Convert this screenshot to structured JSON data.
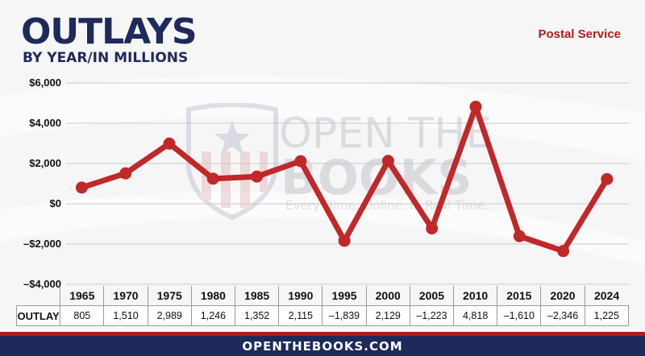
{
  "header": {
    "title": "OUTLAYS",
    "subtitle": "BY YEAR/IN MILLIONS",
    "series_label": "Postal Service"
  },
  "watermark": {
    "line1": "OPEN THE",
    "line2": "BOOKS",
    "tagline": "Every Dime. Online. In Real Time."
  },
  "table": {
    "row_label": "OUTLAY",
    "values": [
      "805",
      "1,510",
      "2,989",
      "1,246",
      "1,352",
      "2,115",
      "–1,839",
      "2,129",
      "–1,223",
      "4,818",
      "–1,610",
      "–2,346",
      "1,225"
    ]
  },
  "footer": {
    "text": "OPENTHEBOOKS.COM"
  },
  "colors": {
    "line": "#c0282a",
    "title": "#1e2a5a",
    "accent": "#b31b1b"
  },
  "chart_data": {
    "type": "line",
    "title": "OUTLAYS",
    "subtitle": "BY YEAR/IN MILLIONS",
    "categories": [
      "1965",
      "1970",
      "1975",
      "1980",
      "1985",
      "1990",
      "1995",
      "2000",
      "2005",
      "2010",
      "2015",
      "2020",
      "2024"
    ],
    "series": [
      {
        "name": "Postal Service",
        "values": [
          805,
          1510,
          2989,
          1246,
          1352,
          2115,
          -1839,
          2129,
          -1223,
          4818,
          -1610,
          -2346,
          1225
        ]
      }
    ],
    "ylim": [
      -4000,
      6000
    ],
    "yticks": [
      -4000,
      -2000,
      0,
      2000,
      4000,
      6000
    ],
    "ytick_labels": [
      "–$4,000",
      "–$2,000",
      "$0",
      "$2,000",
      "$4,000",
      "$6,000"
    ],
    "grid": true,
    "legend": "top-right"
  }
}
